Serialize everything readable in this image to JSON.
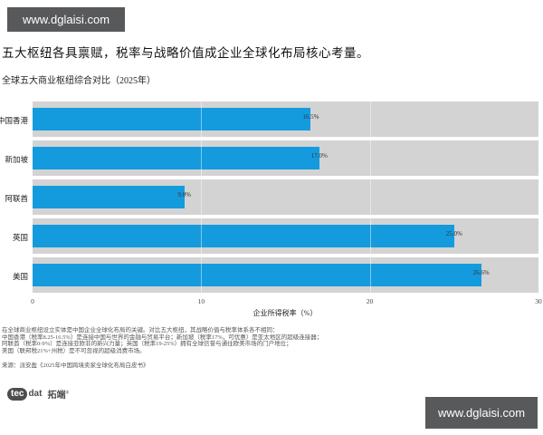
{
  "watermark_top": {
    "text": "www.dglaisi.com"
  },
  "watermark_bottom": {
    "text": "www.dglaisi.com"
  },
  "title": "五大枢纽各具禀赋，税率与战略价值成企业全球化布局核心考量。",
  "chart_data": {
    "type": "bar",
    "orientation": "horizontal",
    "title": "全球五大商业枢纽综合对比（2025年）",
    "categories": [
      "中国香港",
      "新加坡",
      "阿联酋",
      "英国",
      "美国"
    ],
    "values": [
      16.5,
      17.0,
      9.0,
      25.0,
      26.6
    ],
    "value_labels": [
      "16.5%",
      "17.0%",
      "9.0%",
      "25.0%",
      "26.6%"
    ],
    "xlabel": "企业所得税率（%）",
    "xlim": [
      0,
      30
    ],
    "xticks": [
      0,
      10,
      20,
      30
    ],
    "grid": "vertical-faint-white",
    "legend": "none",
    "background_track_value": 30,
    "bar_color": "#149bde",
    "track_color": "#d3d3d3"
  },
  "footnotes": [
    "在全球商业枢纽设立实体是中国企业全球化布局的关键。对比五大枢纽，其战略价值与税率体系各不相同：",
    "中国香港（税率8.25-16.5%）是连接中国与世界的金融与贸易平台；新加坡（税率17%，可优惠）是亚太地区的超级连接器；",
    "阿联酋（税率0-9%）是连接亚欧非的新兴力量；英国（税率19-25%）拥有全球信誉与通往欧美市场的门户地位；",
    "美国（联邦税21%+州税）是不可忽视的超级消费市场。"
  ],
  "source": "来源：派安盈《2025年中国跨境卖家全球化布局白皮书》",
  "logo": {
    "badge": "tec",
    "suffix": "dat",
    "cn": "拓端",
    "reg": "®"
  }
}
